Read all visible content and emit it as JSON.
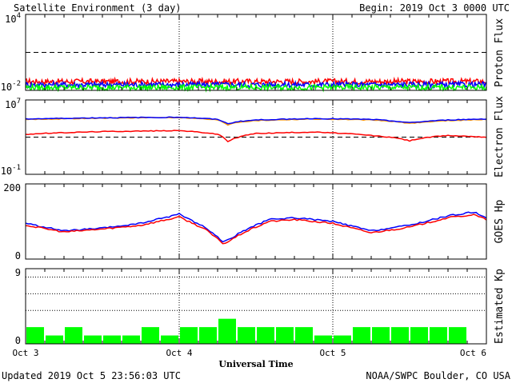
{
  "header": {
    "title": "Satellite Environment (3 day)",
    "begin": "Begin:  2019 Oct 3 0000 UTC"
  },
  "footer": {
    "updated": "Updated 2019 Oct  5 23:56:03 UTC",
    "credit": "NOAA/SWPC Boulder, CO USA"
  },
  "x_axis": {
    "title": "Universal Time",
    "ticks": [
      "Oct 3",
      "Oct 4",
      "Oct 5",
      "Oct 6"
    ]
  },
  "colors": {
    "red": "#ff0000",
    "blue": "#0000ff",
    "green": "#00ff00",
    "orange": "#ff9900"
  },
  "chart_data": [
    {
      "type": "line",
      "ylabel": "Proton Flux",
      "yscale": "log",
      "ylim": [
        0.01,
        10000
      ],
      "ytick_labels": [
        {
          "base": "10",
          "exp": "4"
        },
        {
          "base": "10",
          "exp": "-2"
        }
      ],
      "x": [
        "Oct 3",
        "Oct 4",
        "Oct 5",
        "Oct 6"
      ],
      "threshold": 10,
      "series": [
        {
          "color": "red",
          "level": 0.05
        },
        {
          "color": "blue",
          "level": 0.028
        },
        {
          "color": "green",
          "level": 0.017
        }
      ]
    },
    {
      "type": "line",
      "ylabel": "Electron Flux",
      "yscale": "log",
      "ylim": [
        0.1,
        10000000
      ],
      "ytick_labels": [
        {
          "base": "10",
          "exp": "7"
        },
        {
          "base": "10",
          "exp": "-1"
        }
      ],
      "threshold": 1000,
      "x_hours": [
        0,
        12,
        24,
        30,
        31.5,
        33,
        36,
        45,
        54,
        60,
        66,
        72
      ],
      "series": [
        {
          "color": "orange",
          "values": [
            80000,
            110000,
            130000,
            70000,
            20000,
            40000,
            60000,
            90000,
            70000,
            30000,
            60000,
            80000
          ]
        },
        {
          "color": "blue",
          "values": [
            90000,
            120000,
            140000,
            80000,
            25000,
            45000,
            70000,
            100000,
            80000,
            35000,
            70000,
            90000
          ]
        },
        {
          "color": "red",
          "values": [
            2000,
            4000,
            5000,
            2000,
            300,
            800,
            2500,
            3500,
            1500,
            400,
            1500,
            1000
          ]
        }
      ]
    },
    {
      "type": "line",
      "ylabel": "GOES Hp",
      "ylim": [
        0,
        200
      ],
      "yticks": [
        200,
        0
      ],
      "x_hours": [
        0,
        6,
        12,
        18,
        24,
        28,
        31,
        34,
        38,
        42,
        48,
        54,
        60,
        66,
        70,
        72
      ],
      "series": [
        {
          "color": "blue",
          "values": [
            95,
            75,
            82,
            95,
            120,
            85,
            45,
            75,
            105,
            110,
            100,
            75,
            90,
            115,
            125,
            110
          ]
        },
        {
          "color": "red",
          "values": [
            90,
            72,
            80,
            90,
            112,
            80,
            40,
            70,
            100,
            105,
            95,
            70,
            85,
            110,
            118,
            105
          ]
        }
      ]
    },
    {
      "type": "bar",
      "ylabel": "Estimated Kp",
      "ylim": [
        0,
        9
      ],
      "yticks": [
        9,
        0
      ],
      "color": "green",
      "values": [
        2,
        1,
        2,
        1,
        1,
        1,
        2,
        1,
        2,
        2,
        3,
        2,
        2,
        2,
        2,
        1,
        1,
        2,
        2,
        2,
        2,
        2,
        2
      ]
    }
  ]
}
